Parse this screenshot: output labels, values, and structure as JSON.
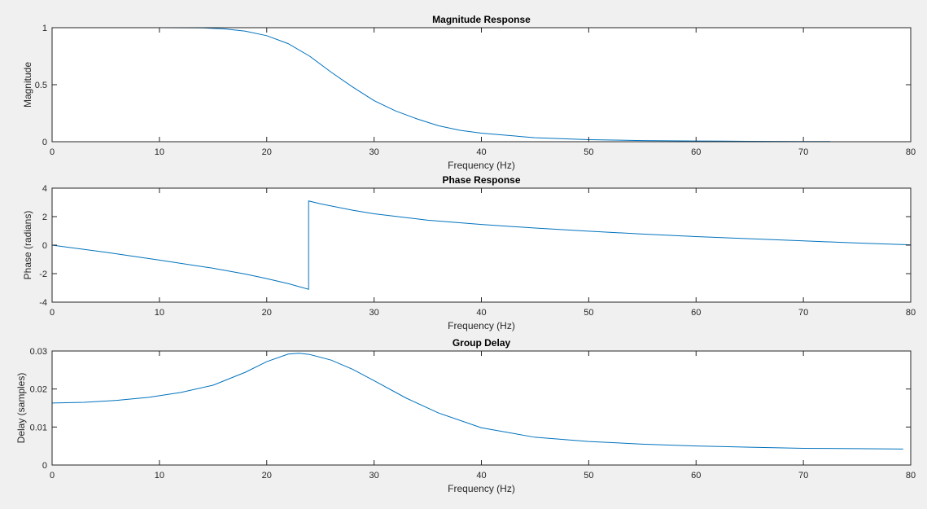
{
  "figure": {
    "background": "#f0f0f0",
    "axes_background": "#ffffff",
    "line_color": "#0072bd",
    "axis_color": "#262626"
  },
  "chart_data": [
    {
      "type": "line",
      "title": "Magnitude Response",
      "xlabel": "Frequency (Hz)",
      "ylabel": "Magnitude",
      "xlim": [
        0,
        80
      ],
      "ylim": [
        0,
        1
      ],
      "xticks": [
        0,
        10,
        20,
        30,
        40,
        50,
        60,
        70,
        80
      ],
      "yticks": [
        0,
        0.5,
        1
      ],
      "grid": false,
      "series": [
        {
          "x": [
            0,
            5,
            10,
            14,
            16,
            18,
            20,
            22,
            24,
            26,
            28,
            30,
            32,
            34,
            36,
            38,
            40,
            45,
            50,
            55,
            60,
            65,
            70,
            72.5
          ],
          "values": [
            1,
            1,
            1,
            0.998,
            0.99,
            0.97,
            0.93,
            0.86,
            0.75,
            0.61,
            0.48,
            0.36,
            0.27,
            0.2,
            0.14,
            0.1,
            0.075,
            0.035,
            0.018,
            0.01,
            0.006,
            0.004,
            0.002,
            0.002
          ]
        }
      ]
    },
    {
      "type": "line",
      "title": "Phase Response",
      "xlabel": "Frequency (Hz)",
      "ylabel": "Phase (radians)",
      "xlim": [
        0,
        80
      ],
      "ylim": [
        -4,
        4
      ],
      "xticks": [
        0,
        10,
        20,
        30,
        40,
        50,
        60,
        70,
        80
      ],
      "yticks": [
        -4,
        -2,
        0,
        2,
        4
      ],
      "grid": false,
      "series": [
        {
          "x": [
            0,
            5,
            10,
            15,
            18,
            20,
            22,
            23.9,
            23.9,
            25,
            28,
            30,
            35,
            40,
            45,
            50,
            55,
            60,
            65,
            70,
            75,
            80
          ],
          "values": [
            0,
            -0.5,
            -1.05,
            -1.62,
            -2.03,
            -2.35,
            -2.7,
            -3.1,
            3.1,
            2.9,
            2.45,
            2.2,
            1.75,
            1.45,
            1.2,
            0.98,
            0.78,
            0.6,
            0.45,
            0.3,
            0.15,
            0.02
          ]
        }
      ]
    },
    {
      "type": "line",
      "title": "Group Delay",
      "xlabel": "Frequency (Hz)",
      "ylabel": "Delay (samples)",
      "xlim": [
        0,
        80
      ],
      "ylim": [
        0,
        0.03
      ],
      "xticks": [
        0,
        10,
        20,
        30,
        40,
        50,
        60,
        70,
        80
      ],
      "yticks": [
        0,
        0.01,
        0.02,
        0.03
      ],
      "grid": false,
      "series": [
        {
          "x": [
            0,
            3,
            6,
            9,
            12,
            15,
            18,
            20,
            22,
            23,
            24,
            26,
            28,
            30,
            33,
            36,
            40,
            45,
            50,
            55,
            60,
            65,
            70,
            75,
            79.3
          ],
          "values": [
            0.0163,
            0.0165,
            0.017,
            0.0178,
            0.0191,
            0.021,
            0.0244,
            0.0272,
            0.0292,
            0.0294,
            0.0291,
            0.0276,
            0.0252,
            0.0222,
            0.0176,
            0.0137,
            0.0098,
            0.0073,
            0.0062,
            0.0055,
            0.005,
            0.0047,
            0.0044,
            0.0043,
            0.0042
          ]
        }
      ]
    }
  ]
}
